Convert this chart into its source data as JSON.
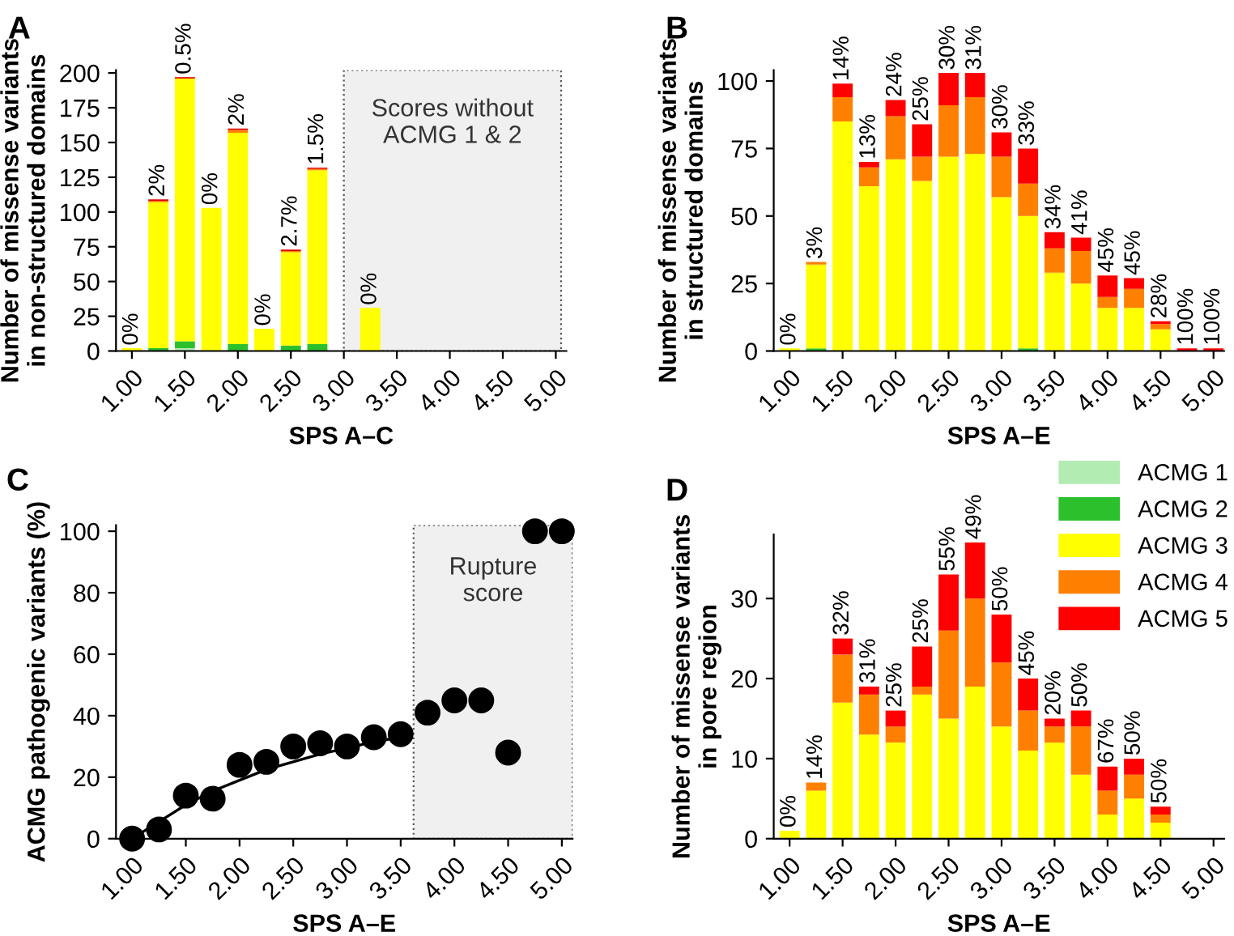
{
  "chart_data": [
    {
      "type": "bar",
      "stacked": true,
      "title": "A",
      "xlabel": "SPS A–C",
      "ylabel": "Number of missense variants\nin non-structured domains",
      "x": [
        1.0,
        1.25,
        1.5,
        1.75,
        2.0,
        2.25,
        2.5,
        2.75,
        3.0,
        3.25
      ],
      "series": [
        {
          "color": "#b3ecb3",
          "values": [
            0,
            0,
            2,
            0,
            0,
            0,
            0,
            0,
            null,
            0
          ]
        },
        {
          "color": "#2dc02d",
          "values": [
            0,
            2,
            5,
            0,
            5,
            0,
            4,
            5,
            null,
            0
          ]
        },
        {
          "color": "#ffff00",
          "values": [
            2,
            105,
            189,
            103,
            152,
            16,
            67,
            125,
            null,
            31
          ]
        },
        {
          "color": "#ff8000",
          "values": [
            0,
            1,
            0,
            0,
            2,
            0,
            1,
            1,
            null,
            0
          ]
        },
        {
          "color": "#e00000",
          "values": [
            0,
            1,
            1,
            0,
            1,
            0,
            1,
            1,
            null,
            0
          ]
        }
      ],
      "value_labels": [
        "0%",
        "2%",
        "0.5%",
        "0%",
        "2%",
        "0%",
        "2.7%",
        "1.5%",
        null,
        "0%"
      ],
      "xlim": [
        0.85,
        5.1
      ],
      "ylim": [
        0,
        202
      ],
      "xticks": [
        {
          "value": 1.0,
          "label": "1.00"
        },
        {
          "value": 1.5,
          "label": "1.50"
        },
        {
          "value": 2.0,
          "label": "2.00"
        },
        {
          "value": 2.5,
          "label": "2.50"
        },
        {
          "value": 3.0,
          "label": "3.00"
        },
        {
          "value": 3.5,
          "label": "3.50"
        },
        {
          "value": 4.0,
          "label": "4.00"
        },
        {
          "value": 4.5,
          "label": "4.50"
        },
        {
          "value": 5.0,
          "label": "5.00"
        }
      ],
      "yticks": [
        0,
        25,
        50,
        75,
        100,
        125,
        150,
        175,
        200
      ],
      "bands": [
        {
          "axis": "x",
          "from": 3.0,
          "to": 5.05,
          "label": "Scores without\nACMG 1 & 2",
          "color": "#f0f0f0"
        }
      ]
    },
    {
      "type": "bar",
      "stacked": true,
      "title": "B",
      "xlabel": "SPS A–E",
      "ylabel": "Number of missense variants\nin structured domains",
      "x": [
        1.0,
        1.25,
        1.5,
        1.75,
        2.0,
        2.25,
        2.5,
        2.75,
        3.0,
        3.25,
        3.5,
        3.75,
        4.0,
        4.25,
        4.5,
        4.75,
        5.0
      ],
      "series": [
        {
          "color": "#b3ecb3",
          "values": [
            0,
            0,
            0,
            0,
            0,
            0,
            0,
            0,
            0,
            0,
            0,
            0,
            0,
            0,
            0,
            0,
            0
          ]
        },
        {
          "color": "#2dc02d",
          "values": [
            0,
            1,
            0,
            0,
            0,
            0,
            0,
            0,
            0,
            1,
            0,
            0,
            0,
            0,
            0,
            0,
            0
          ]
        },
        {
          "color": "#ffff00",
          "values": [
            1,
            31,
            85,
            61,
            71,
            63,
            72,
            73,
            57,
            49,
            29,
            25,
            16,
            16,
            8,
            0,
            0
          ]
        },
        {
          "color": "#ff8000",
          "values": [
            0,
            1,
            9,
            7,
            16,
            9,
            19,
            21,
            15,
            12,
            9,
            12,
            4,
            7,
            2,
            0,
            0
          ]
        },
        {
          "color": "#ff0000",
          "values": [
            0,
            0,
            5,
            2,
            6,
            12,
            12,
            9,
            9,
            13,
            6,
            5,
            8,
            4,
            1,
            1,
            1
          ]
        }
      ],
      "value_labels": [
        "0%",
        "3%",
        "14%",
        "13%",
        "24%",
        "25%",
        "30%",
        "31%",
        "30%",
        "33%",
        "34%",
        "41%",
        "45%",
        "45%",
        "28%",
        "100%",
        "100%"
      ],
      "xlim": [
        0.85,
        5.1
      ],
      "ylim": [
        0,
        104
      ],
      "xticks": [
        {
          "value": 1.0,
          "label": "1.00"
        },
        {
          "value": 1.5,
          "label": "1.50"
        },
        {
          "value": 2.0,
          "label": "2.00"
        },
        {
          "value": 2.5,
          "label": "2.50"
        },
        {
          "value": 3.0,
          "label": "3.00"
        },
        {
          "value": 3.5,
          "label": "3.50"
        },
        {
          "value": 4.0,
          "label": "4.00"
        },
        {
          "value": 4.5,
          "label": "4.50"
        },
        {
          "value": 5.0,
          "label": "5.00"
        }
      ],
      "yticks": [
        0,
        25,
        50,
        75,
        100
      ]
    },
    {
      "type": "scatter",
      "title": "C",
      "xlabel": "SPS A–E",
      "ylabel": "ACMG pathogenic variants (%)",
      "x": [
        1.0,
        1.25,
        1.5,
        1.75,
        2.0,
        2.25,
        2.5,
        2.75,
        3.0,
        3.25,
        3.5,
        3.75,
        4.0,
        4.25,
        4.5,
        4.75,
        5.0
      ],
      "series": [
        {
          "color": "#000000",
          "marker": "circle",
          "values": [
            0,
            3,
            14,
            13,
            24,
            25,
            30,
            31,
            30,
            33,
            34,
            41,
            45,
            45,
            28,
            100,
            100
          ]
        },
        {
          "type": "line",
          "color": "#000000",
          "x": [
            1.0,
            1.25,
            1.5,
            1.75,
            2.0,
            2.25,
            2.5,
            2.75,
            3.0,
            3.25,
            3.5,
            3.6
          ],
          "values": [
            0,
            5.5,
            11,
            15.5,
            19,
            22.5,
            25,
            27.5,
            29.5,
            31.5,
            33,
            33.7
          ]
        }
      ],
      "xlim": [
        0.85,
        5.1
      ],
      "ylim": [
        0,
        102
      ],
      "xticks": [
        {
          "value": 1.0,
          "label": "1.00"
        },
        {
          "value": 1.5,
          "label": "1.50"
        },
        {
          "value": 2.0,
          "label": "2.00"
        },
        {
          "value": 2.5,
          "label": "2.50"
        },
        {
          "value": 3.0,
          "label": "3.00"
        },
        {
          "value": 3.5,
          "label": "3.50"
        },
        {
          "value": 4.0,
          "label": "4.00"
        },
        {
          "value": 4.5,
          "label": "4.50"
        },
        {
          "value": 5.0,
          "label": "5.00"
        }
      ],
      "yticks": [
        0,
        20,
        40,
        60,
        80,
        100
      ],
      "bands": [
        {
          "axis": "x",
          "from": 3.62,
          "to": 5.1,
          "label": "Rupture\nscore",
          "color": "#f0f0f0"
        }
      ]
    },
    {
      "type": "bar",
      "stacked": true,
      "title": "D",
      "xlabel": "SPS A–E",
      "ylabel": "Number of missense variants\nin pore region",
      "legend": "top right",
      "x": [
        1.0,
        1.25,
        1.5,
        1.75,
        2.0,
        2.25,
        2.5,
        2.75,
        3.0,
        3.25,
        3.5,
        3.75,
        4.0,
        4.25,
        4.5
      ],
      "series": [
        {
          "name": "ACMG 1",
          "color": "#b3ecb3",
          "values": [
            0,
            0,
            0,
            0,
            0,
            0,
            0,
            0,
            0,
            0,
            0,
            0,
            0,
            0,
            0
          ]
        },
        {
          "name": "ACMG 2",
          "color": "#2dc02d",
          "values": [
            0,
            0,
            0,
            0,
            0,
            0,
            0,
            0,
            0,
            0,
            0,
            0,
            0,
            0,
            0
          ]
        },
        {
          "name": "ACMG 3",
          "color": "#ffff00",
          "values": [
            1,
            6,
            17,
            13,
            12,
            18,
            15,
            19,
            14,
            11,
            12,
            8,
            3,
            5,
            2
          ]
        },
        {
          "name": "ACMG 4",
          "color": "#ff8000",
          "values": [
            0,
            1,
            6,
            5,
            2,
            1,
            11,
            11,
            8,
            5,
            2,
            6,
            3,
            3,
            1
          ]
        },
        {
          "name": "ACMG 5",
          "color": "#ff0000",
          "values": [
            0,
            0,
            2,
            1,
            2,
            5,
            7,
            7,
            6,
            4,
            1,
            2,
            3,
            2,
            1
          ]
        }
      ],
      "value_labels": [
        "0%",
        "14%",
        "32%",
        "31%",
        "25%",
        "25%",
        "55%",
        "49%",
        "50%",
        "45%",
        "20%",
        "50%",
        "67%",
        "50%",
        "50%"
      ],
      "xlim": [
        0.85,
        5.1
      ],
      "ylim": [
        0,
        38
      ],
      "xticks": [
        {
          "value": 1.0,
          "label": "1.00"
        },
        {
          "value": 1.5,
          "label": "1.50"
        },
        {
          "value": 2.0,
          "label": "2.00"
        },
        {
          "value": 2.5,
          "label": "2.50"
        },
        {
          "value": 3.0,
          "label": "3.00"
        },
        {
          "value": 3.5,
          "label": "3.50"
        },
        {
          "value": 4.0,
          "label": "4.00"
        },
        {
          "value": 4.5,
          "label": "4.50"
        },
        {
          "value": 5.0,
          "label": "5.00"
        }
      ],
      "yticks": [
        0,
        10,
        20,
        30
      ]
    }
  ]
}
